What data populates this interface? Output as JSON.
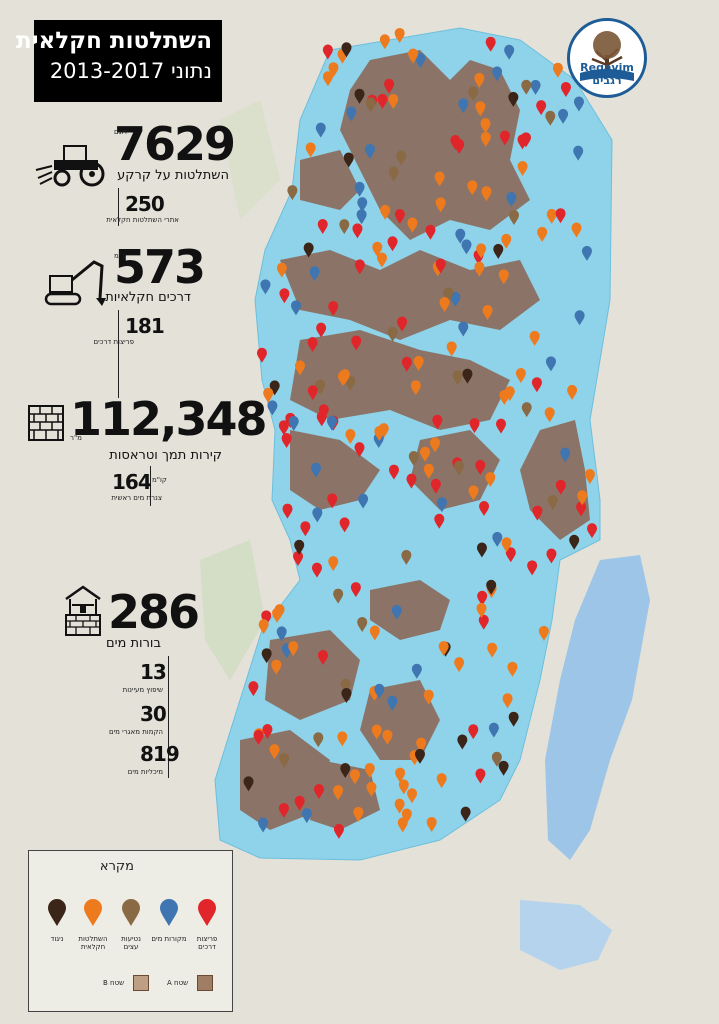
{
  "title": {
    "line1": "השתלטות חקלאית",
    "line2": "נתוני 2013-2017"
  },
  "logo": {
    "text": "Regavim רגבים",
    "icon": "tree-logo-icon"
  },
  "stats": {
    "land": {
      "value": "7629",
      "unit": "דונם",
      "label": "השתלטות על קרקע",
      "icon": "tractor-icon",
      "sub_value": "250",
      "sub_label": "אתרי השתלטות חקלאית"
    },
    "roads": {
      "value": "573",
      "unit": "ק\"מ",
      "label": "דרכים חקלאיות",
      "icon": "excavator-icon",
      "sub_value": "181",
      "sub_label": "פריצות דרכים"
    },
    "walls": {
      "value": "112,348",
      "unit": "מ\"ר",
      "label": "קירות תמך וטראסות",
      "icon": "brick-wall-icon",
      "sub_value": "164",
      "sub_unit": "קו\"מ",
      "sub_label": "צנרת מים ראשית"
    },
    "wells": {
      "value": "286",
      "label": "בורות מים",
      "icon": "water-well-icon",
      "items": [
        {
          "value": "13",
          "label": "שיפוץ מעיינות"
        },
        {
          "value": "30",
          "label": "הקמות מאגרי מים"
        },
        {
          "value": "819",
          "label": "מיכליות מים"
        }
      ]
    }
  },
  "legend": {
    "title": "מקרא",
    "items": [
      {
        "label": "פריצות דרכים",
        "color": "#e0262a"
      },
      {
        "label": "מקורות מים",
        "color": "#3f75b0"
      },
      {
        "label": "נטיעות עצים",
        "color": "#8a6a44"
      },
      {
        "label": "השתלטות חקלאית",
        "color": "#ee7a1e"
      },
      {
        "label": "ניגוד",
        "color": "#3b2518"
      }
    ],
    "area_a": {
      "label": "שטח A",
      "color": "#a07e66"
    },
    "area_b": {
      "label": "שטח B",
      "color": "#bf9e86"
    }
  },
  "map_colors": {
    "area_c": "#8ed3ea",
    "area_a": "#8a6e5e",
    "sea": "#9ac4e6",
    "land": "#e4e2d8"
  }
}
